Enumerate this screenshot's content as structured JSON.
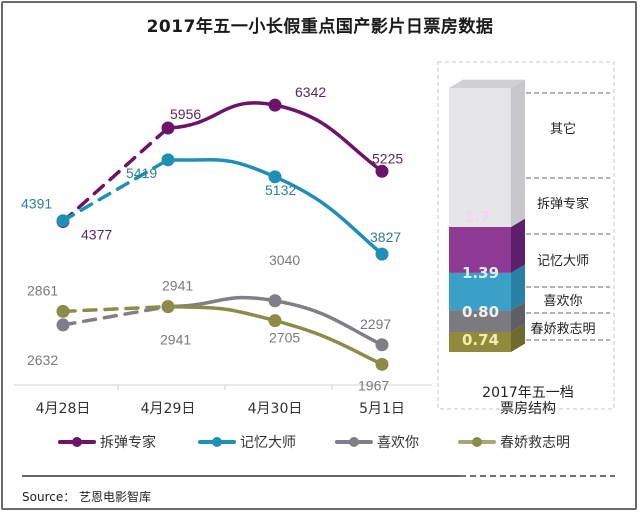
{
  "chart_data": [
    {
      "type": "line",
      "title": "2017年五一小长假重点国产影片日票房数据",
      "categories": [
        "4月28日",
        "4月29日",
        "4月30日",
        "5月1日"
      ],
      "xlabel": "",
      "ylabel": "",
      "ylim": [
        1500,
        6800
      ],
      "grid": false,
      "legend_position": "bottom",
      "series": [
        {
          "name": "拆弹专家",
          "color": "#6b1468",
          "values": [
            4377,
            5956,
            6342,
            5225
          ],
          "labels": [
            "4377",
            "5956",
            "6342",
            "5225"
          ]
        },
        {
          "name": "记忆大师",
          "color": "#1f8fb5",
          "values": [
            4391,
            5419,
            5132,
            3827
          ],
          "labels": [
            "4391",
            "5419",
            "5132",
            "3827"
          ]
        },
        {
          "name": "喜欢你",
          "color": "#7f7f85",
          "values": [
            2632,
            2941,
            3040,
            2297
          ],
          "labels": [
            "2632",
            "2941",
            "3040",
            "2297"
          ]
        },
        {
          "name": "春娇救志明",
          "color": "#8c8c4a",
          "values": [
            2861,
            2941,
            2705,
            1967
          ],
          "labels": [
            "2861",
            "2941",
            "2705",
            "1967"
          ]
        }
      ],
      "note": "4月28日→4月29日 segments drawn dashed"
    },
    {
      "type": "bar",
      "title": "2017年五一档票房结构",
      "stacked": true,
      "categories": [
        "2017年五一档"
      ],
      "series": [
        {
          "name": "春娇救志明",
          "value": 0.74,
          "label": "0.74",
          "color": "#8f8a3c"
        },
        {
          "name": "喜欢你",
          "value": 0.8,
          "label": "0.80",
          "color": "#7a7a80"
        },
        {
          "name": "记忆大师",
          "value": 1.39,
          "label": "1.39",
          "color": "#3aa0c8"
        },
        {
          "name": "拆弹专家",
          "value": 1.7,
          "label": "1.7",
          "color": "#8e3a94"
        },
        {
          "name": "其它",
          "value": null,
          "label": "",
          "color": "#e6e6e8"
        }
      ]
    }
  ],
  "header": {
    "title": "2017年五一小长假重点国产影片日票房数据"
  },
  "x_ticks": [
    "4月28日",
    "4月29日",
    "4月30日",
    "5月1日"
  ],
  "legend": [
    "拆弹专家",
    "记忆大师",
    "喜欢你",
    "春娇救志明"
  ],
  "structure": {
    "title_line1": "2017年五一档",
    "title_line2": "票房结构",
    "segments": [
      "其它",
      "拆弹专家",
      "记忆大师",
      "喜欢你",
      "春娇救志明"
    ],
    "values": [
      "1.7",
      "1.39",
      "0.80",
      "0.74"
    ]
  },
  "footer": {
    "source": "Source： 艺恩电影智库"
  }
}
